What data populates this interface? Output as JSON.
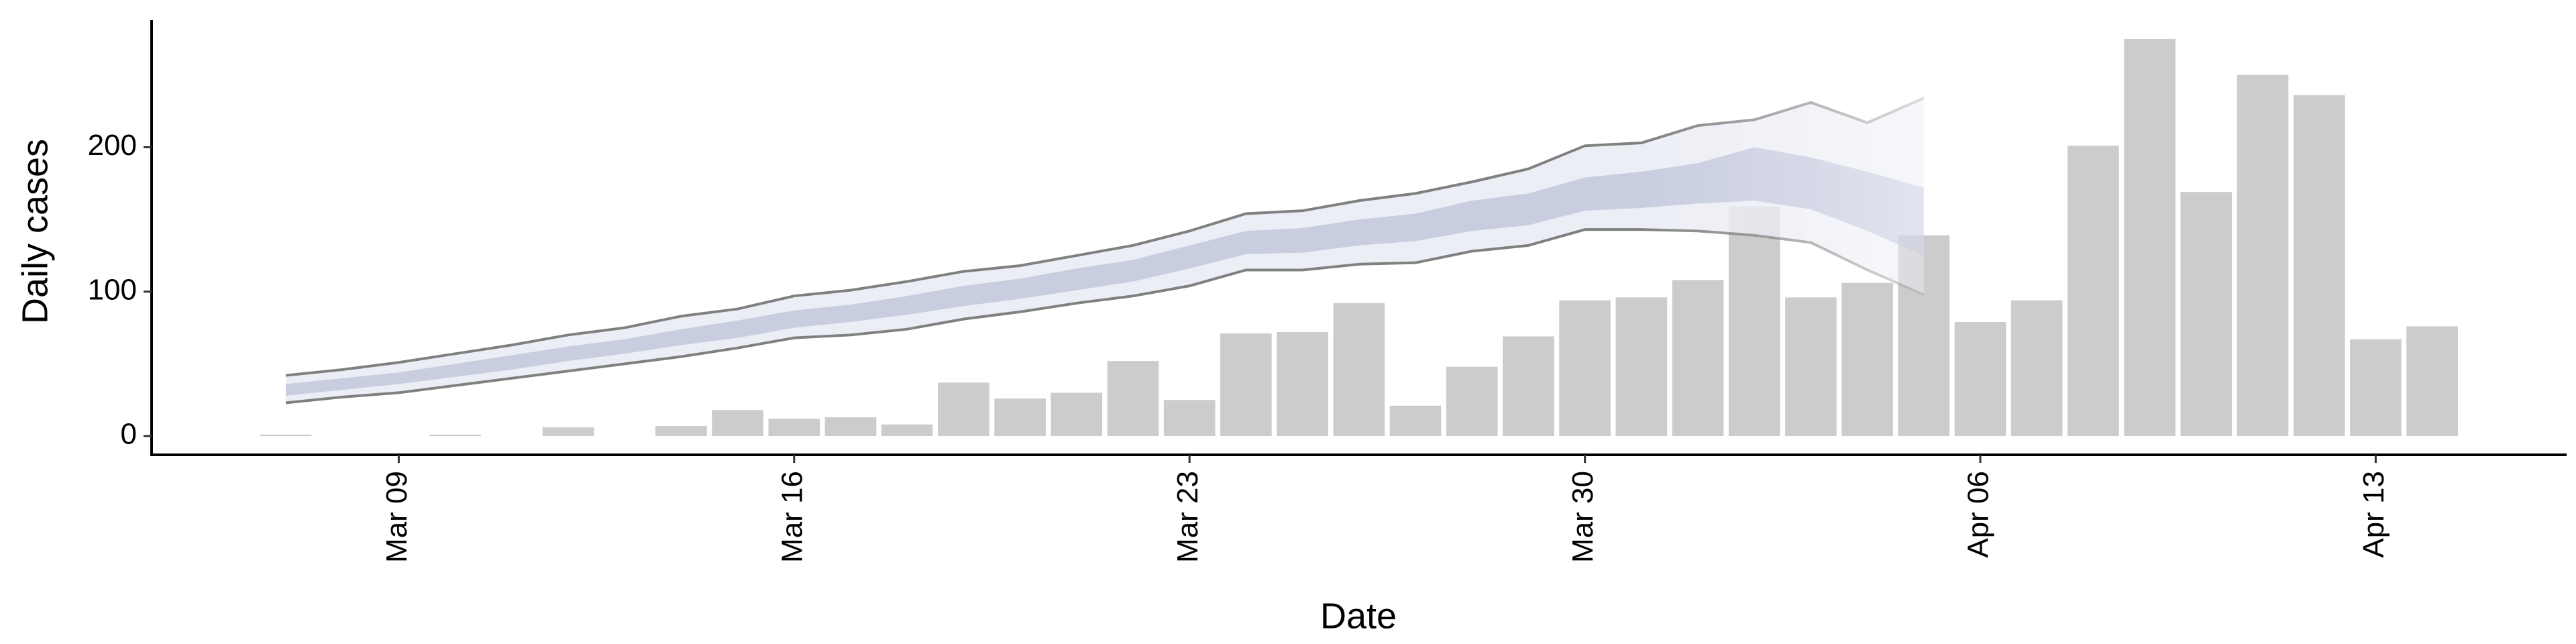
{
  "chart_data": {
    "type": "bar",
    "xlabel": "Date",
    "ylabel": "Daily cases",
    "categories": [
      "Mar 07",
      "Mar 08",
      "Mar 09",
      "Mar 10",
      "Mar 11",
      "Mar 12",
      "Mar 13",
      "Mar 14",
      "Mar 15",
      "Mar 16",
      "Mar 17",
      "Mar 18",
      "Mar 19",
      "Mar 20",
      "Mar 21",
      "Mar 22",
      "Mar 23",
      "Mar 24",
      "Mar 25",
      "Mar 26",
      "Mar 27",
      "Mar 28",
      "Mar 29",
      "Mar 30",
      "Mar 31",
      "Apr 01",
      "Apr 02",
      "Apr 03",
      "Apr 04",
      "Apr 05",
      "Apr 06",
      "Apr 07",
      "Apr 08",
      "Apr 09",
      "Apr 10",
      "Apr 11",
      "Apr 12",
      "Apr 13",
      "Apr 14"
    ],
    "values": [
      1,
      0,
      0,
      1,
      0,
      6,
      0,
      7,
      18,
      12,
      13,
      8,
      37,
      26,
      30,
      52,
      25,
      71,
      72,
      92,
      21,
      48,
      69,
      94,
      96,
      108,
      159,
      96,
      106,
      139,
      79,
      94,
      201,
      275,
      169,
      250,
      236,
      67,
      76
    ],
    "color": "#cccccc",
    "bands": [
      {
        "color": "#eceef5",
        "line_color": "#808080",
        "lower": [
          23,
          27,
          30,
          35,
          40,
          45,
          50,
          55,
          61,
          68,
          70,
          74,
          81,
          86,
          92,
          97,
          104,
          115,
          115,
          119,
          120,
          128,
          132,
          143,
          143,
          142,
          139,
          134,
          115,
          98
        ],
        "upper": [
          42,
          46,
          51,
          57,
          63,
          70,
          75,
          83,
          88,
          97,
          101,
          107,
          114,
          118,
          125,
          132,
          142,
          154,
          156,
          163,
          168,
          176,
          185,
          201,
          203,
          215,
          219,
          231,
          217,
          234
        ]
      },
      {
        "color": "#c8cde0",
        "lower": [
          28,
          32,
          36,
          41,
          46,
          52,
          57,
          63,
          68,
          75,
          79,
          84,
          90,
          95,
          101,
          107,
          116,
          126,
          127,
          132,
          135,
          142,
          146,
          156,
          158,
          161,
          163,
          157,
          142,
          125
        ],
        "upper": [
          36,
          40,
          44,
          50,
          56,
          62,
          67,
          74,
          80,
          87,
          91,
          97,
          104,
          109,
          116,
          122,
          132,
          142,
          144,
          150,
          154,
          163,
          168,
          179,
          183,
          189,
          200,
          193,
          183,
          172
        ]
      }
    ],
    "xticks": [
      "Mar 09",
      "Mar 16",
      "Mar 23",
      "Mar 30",
      "Apr 06",
      "Apr 13"
    ],
    "ylim": [
      -13,
      288
    ],
    "yticks": [
      0,
      100,
      200
    ]
  }
}
